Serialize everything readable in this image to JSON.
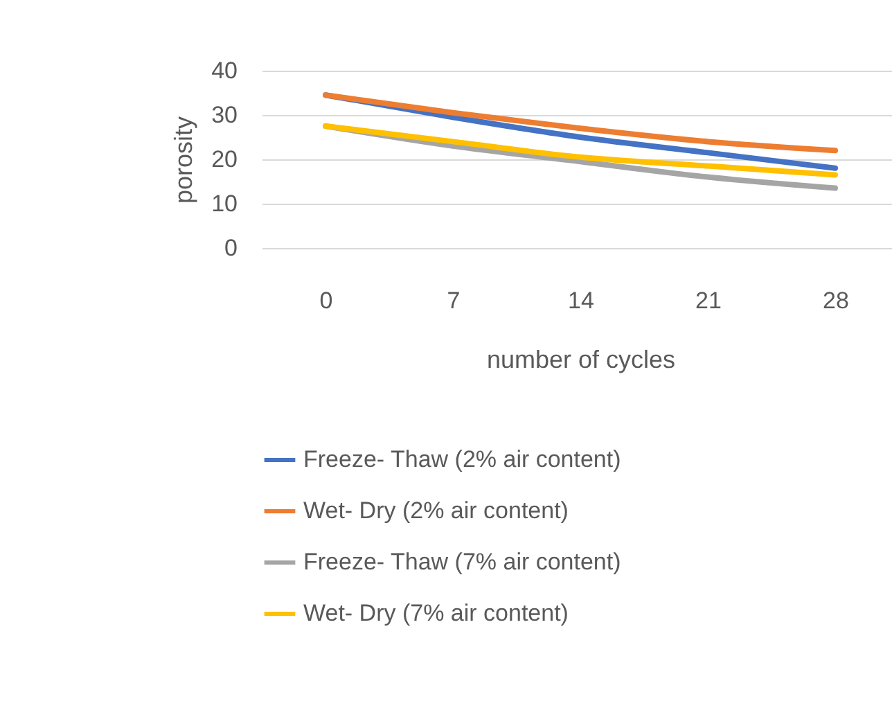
{
  "chart_data": {
    "type": "line",
    "xlabel": "number of cycles",
    "ylabel": "porosity",
    "categories": [
      "0",
      "7",
      "14",
      "21",
      "28"
    ],
    "series": [
      {
        "name": "Freeze- Thaw (2% air content)",
        "color": "#4472c4",
        "values": [
          34.5,
          29.5,
          25,
          21.5,
          18
        ]
      },
      {
        "name": "Wet- Dry (2% air content)",
        "color": "#ed7d31",
        "values": [
          34.5,
          30.5,
          27,
          24,
          22
        ]
      },
      {
        "name": "Freeze- Thaw (7% air content)",
        "color": "#a5a5a5",
        "values": [
          27.5,
          23,
          19.5,
          16,
          13.5
        ]
      },
      {
        "name": "Wet- Dry (7% air content)",
        "color": "#ffc000",
        "values": [
          27.5,
          24,
          20.5,
          18.5,
          16.5
        ]
      }
    ],
    "ylim": [
      0,
      40
    ],
    "yticks": [
      0,
      10,
      20,
      30,
      40
    ],
    "grid": "y",
    "legend": "bottom",
    "marker": "none",
    "line_style": "solid"
  }
}
